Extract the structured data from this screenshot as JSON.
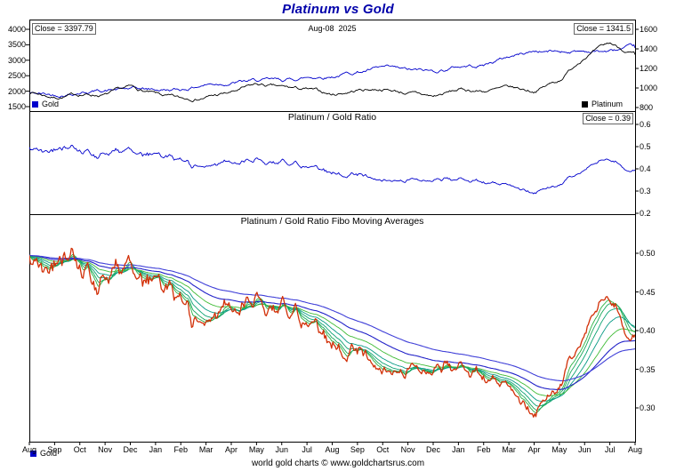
{
  "title": "Platinum vs Gold",
  "header": {
    "gold_close": "Close = 3397.79",
    "date": "Aug-08  2025",
    "platinum_close": "Close = 1341.5"
  },
  "legend": {
    "gold": "Gold",
    "platinum": "Platinum"
  },
  "panels": {
    "price": {
      "left_ticks": [
        "4000",
        "3500",
        "3000",
        "2500",
        "2000",
        "1500"
      ],
      "right_ticks": [
        "1600",
        "1400",
        "1200",
        "1000",
        "800"
      ]
    },
    "ratio": {
      "title": "Platinum / Gold Ratio",
      "close": "Close = 0.39",
      "right_ticks": [
        "0.6",
        "0.5",
        "0.4",
        "0.3",
        "0.2"
      ]
    },
    "fibo": {
      "title": "Platinum / Gold Ratio Fibo Moving Averages",
      "right_ticks": [
        "0.50",
        "0.45",
        "0.40",
        "0.35",
        "0.30"
      ]
    }
  },
  "x_axis": {
    "month_labels": [
      "Aug",
      "Sep",
      "Oct",
      "Nov",
      "Dec",
      "Jan",
      "Feb",
      "Mar",
      "Apr",
      "May",
      "Jun",
      "Jul",
      "Aug",
      "Sep",
      "Oct",
      "Nov",
      "Dec",
      "Jan",
      "Feb",
      "Mar",
      "Apr",
      "May",
      "Jun",
      "Jul",
      "Aug"
    ]
  },
  "footer": {
    "legend_gold": "Gold",
    "credit": "world gold charts © www.goldchartsrus.com"
  },
  "colors": {
    "gold": "#0000cc",
    "platinum": "#000000",
    "ratio": "#0000cc",
    "fibo_price": "#d23008",
    "fibo_fast": [
      "#2eb244",
      "#1aa95c",
      "#0ba272",
      "#079a85",
      "#3fbb35"
    ],
    "fibo_slow": [
      "#2222c8",
      "#4040d8"
    ],
    "title": "#0000aa",
    "frame": "#000000"
  },
  "chart_data": [
    {
      "type": "line",
      "title": "Platinum vs Gold",
      "x": [
        "Aug-23",
        "Sep-23",
        "Oct-23",
        "Nov-23",
        "Dec-23",
        "Jan-24",
        "Feb-24",
        "Mar-24",
        "Apr-24",
        "May-24",
        "Jun-24",
        "Jul-24",
        "Aug-24",
        "Sep-24",
        "Oct-24",
        "Nov-24",
        "Dec-24",
        "Jan-25",
        "Feb-25",
        "Mar-25",
        "Apr-25",
        "May-25",
        "Jun-25",
        "Jul-25",
        "Aug-25"
      ],
      "annotations": {
        "date": "Aug-08 2025",
        "gold_close": 3397.79,
        "platinum_close": 1341.5
      },
      "ylim_left": [
        1500,
        4000
      ],
      "ylim_right": [
        800,
        1600
      ],
      "grid": false,
      "legend_position": "bottom-inside",
      "series": [
        {
          "name": "Gold",
          "axis": "left",
          "color": "#0000cc",
          "values": [
            1940,
            1870,
            1985,
            2040,
            2065,
            2040,
            2045,
            2230,
            2290,
            2330,
            2330,
            2445,
            2500,
            2635,
            2745,
            2650,
            2625,
            2800,
            2860,
            3120,
            3300,
            3290,
            3300,
            3290,
            3397.79
          ]
        },
        {
          "name": "Platinum",
          "axis": "right",
          "color": "#000000",
          "values": [
            965,
            905,
            935,
            930,
            1000,
            930,
            880,
            910,
            950,
            1030,
            1000,
            980,
            930,
            980,
            995,
            950,
            910,
            980,
            970,
            995,
            970,
            1080,
            1330,
            1450,
            1341.5
          ]
        }
      ]
    },
    {
      "type": "line",
      "title": "Platinum / Gold Ratio",
      "x": [
        "Aug-23",
        "Sep-23",
        "Oct-23",
        "Nov-23",
        "Dec-23",
        "Jan-24",
        "Feb-24",
        "Mar-24",
        "Apr-24",
        "May-24",
        "Jun-24",
        "Jul-24",
        "Aug-24",
        "Sep-24",
        "Oct-24",
        "Nov-24",
        "Dec-24",
        "Jan-25",
        "Feb-25",
        "Mar-25",
        "Apr-25",
        "May-25",
        "Jun-25",
        "Jul-25",
        "Aug-25"
      ],
      "ylim": [
        0.2,
        0.6
      ],
      "close": 0.39,
      "grid": false,
      "series": [
        {
          "name": "Platinum/Gold Ratio",
          "color": "#0000cc",
          "values": [
            0.497,
            0.484,
            0.471,
            0.456,
            0.484,
            0.456,
            0.43,
            0.408,
            0.415,
            0.442,
            0.429,
            0.401,
            0.372,
            0.372,
            0.362,
            0.358,
            0.347,
            0.35,
            0.339,
            0.319,
            0.294,
            0.328,
            0.403,
            0.441,
            0.395
          ]
        }
      ]
    },
    {
      "type": "line",
      "title": "Platinum / Gold Ratio Fibo Moving Averages",
      "x": [
        "Aug-23",
        "Sep-23",
        "Oct-23",
        "Nov-23",
        "Dec-23",
        "Jan-24",
        "Feb-24",
        "Mar-24",
        "Apr-24",
        "May-24",
        "Jun-24",
        "Jul-24",
        "Aug-24",
        "Sep-24",
        "Oct-24",
        "Nov-24",
        "Dec-24",
        "Jan-25",
        "Feb-25",
        "Mar-25",
        "Apr-25",
        "May-25",
        "Jun-25",
        "Jul-25",
        "Aug-25"
      ],
      "ylim": [
        0.28,
        0.53
      ],
      "ma_periods_days": [
        8,
        13,
        21,
        34,
        55,
        89,
        144
      ],
      "grid": false,
      "series": [
        {
          "name": "Platinum/Gold Ratio",
          "color": "#d23008",
          "values": [
            0.497,
            0.484,
            0.471,
            0.456,
            0.484,
            0.456,
            0.43,
            0.408,
            0.415,
            0.442,
            0.429,
            0.401,
            0.372,
            0.372,
            0.362,
            0.358,
            0.347,
            0.35,
            0.339,
            0.319,
            0.294,
            0.328,
            0.403,
            0.441,
            0.395
          ]
        }
      ]
    }
  ]
}
